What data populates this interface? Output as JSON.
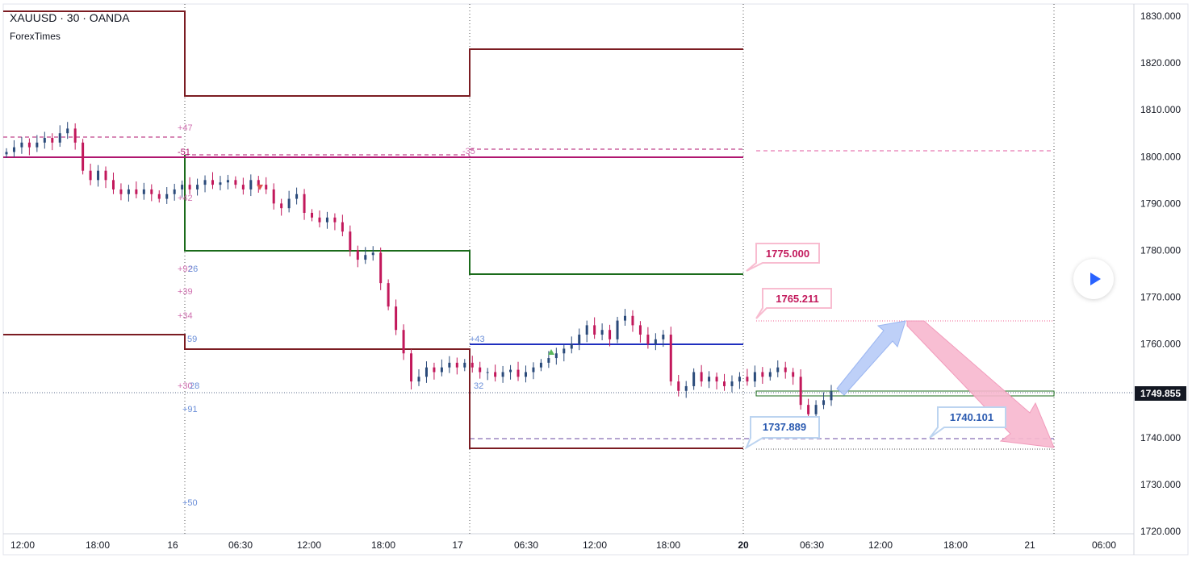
{
  "header": {
    "symbol_line": "XAUUSD · 30 · OANDA",
    "indicator_name": "ForexTimes"
  },
  "colors": {
    "up_candle": "#2a4a7a",
    "down_candle": "#c2185b",
    "maroon_level": "#7b1c22",
    "green_level": "#1b6b1b",
    "blue_level": "#1f2fbf",
    "magenta_level": "#b0166f",
    "pink_annotation": "#f06292",
    "blue_annotation": "#4a86d8",
    "price_badge": "#131722"
  },
  "chart_data": {
    "type": "candlestick",
    "symbol": "XAUUSD",
    "timeframe": "30",
    "ylim": [
      1720,
      1830
    ],
    "price_ticks": [
      "1830.000",
      "1820.000",
      "1810.000",
      "1800.000",
      "1790.000",
      "1780.000",
      "1770.000",
      "1760.000",
      "1750.000",
      "1740.000",
      "1730.000",
      "1720.000"
    ],
    "time_ticks": [
      {
        "label": "12:00",
        "bold": false
      },
      {
        "label": "18:00",
        "bold": false
      },
      {
        "label": "16",
        "bold": false
      },
      {
        "label": "06:30",
        "bold": false
      },
      {
        "label": "12:00",
        "bold": false
      },
      {
        "label": "18:00",
        "bold": false
      },
      {
        "label": "17",
        "bold": false
      },
      {
        "label": "06:30",
        "bold": false
      },
      {
        "label": "12:00",
        "bold": false
      },
      {
        "label": "18:00",
        "bold": false
      },
      {
        "label": "20",
        "bold": true
      },
      {
        "label": "06:30",
        "bold": false
      },
      {
        "label": "12:00",
        "bold": false
      },
      {
        "label": "18:00",
        "bold": false
      },
      {
        "label": "21",
        "bold": false
      },
      {
        "label": "06:00",
        "bold": false
      }
    ],
    "current_price": "1749.855",
    "close_path": [
      1801,
      1802,
      1803,
      1802,
      1803,
      1804,
      1803,
      1805,
      1806,
      1803,
      1797,
      1795,
      1797,
      1795,
      1793,
      1792,
      1793,
      1792,
      1793,
      1792,
      1791,
      1792,
      1793,
      1794,
      1793,
      1794,
      1795,
      1794,
      1794.5,
      1795,
      1794,
      1793,
      1795,
      1794,
      1793,
      1790,
      1789,
      1791,
      1792,
      1788,
      1787,
      1786,
      1787,
      1786,
      1784,
      1780,
      1778,
      1779,
      1779.5,
      1773,
      1768,
      1763,
      1758,
      1752,
      1753,
      1755,
      1754,
      1755,
      1756,
      1755,
      1756,
      1755,
      1754,
      1754,
      1753,
      1754,
      1754.5,
      1753,
      1754,
      1755,
      1756,
      1757,
      1758,
      1759,
      1760,
      1762,
      1764,
      1762,
      1763,
      1761,
      1765,
      1766,
      1764,
      1762,
      1760,
      1761,
      1762,
      1752,
      1750,
      1751,
      1754,
      1752,
      1753,
      1752,
      1751,
      1752,
      1753,
      1752,
      1754,
      1753,
      1754,
      1755,
      1754,
      1753,
      1747,
      1745,
      1747,
      1748,
      1749.855
    ],
    "levels": [
      {
        "name": "maroon-top-1",
        "price": 1831,
        "color": "maroon"
      },
      {
        "name": "maroon-top-2",
        "price": 1813,
        "color": "maroon"
      },
      {
        "name": "maroon-top-3",
        "price": 1823,
        "color": "maroon"
      },
      {
        "name": "maroon-low-1",
        "price": 1762,
        "color": "maroon"
      },
      {
        "name": "maroon-low-2",
        "price": 1759,
        "color": "maroon"
      },
      {
        "name": "maroon-low-3",
        "price": 1738,
        "color": "maroon"
      },
      {
        "name": "green-mid-1",
        "price": 1780,
        "color": "green"
      },
      {
        "name": "green-mid-2",
        "price": 1775,
        "color": "green"
      },
      {
        "name": "blue-mid",
        "price": 1760,
        "color": "blue"
      },
      {
        "name": "magenta",
        "price": 1800,
        "color": "magenta"
      }
    ],
    "annotations": {
      "callout_1775": "1775.000",
      "callout_1765": "1765.211",
      "callout_1737": "1737.889",
      "callout_1740": "1740.101"
    },
    "small_labels": {
      "p47": "+47",
      "m51": "-51",
      "p42": "+42",
      "p92": "+92",
      "p26": "26",
      "p39": "+39",
      "p34": "+34",
      "p59": "59",
      "p30": "+30",
      "p28": "28",
      "p91": "+91",
      "p50": "+50",
      "p35": "-35",
      "p43": "+43",
      "p32": "32"
    }
  }
}
